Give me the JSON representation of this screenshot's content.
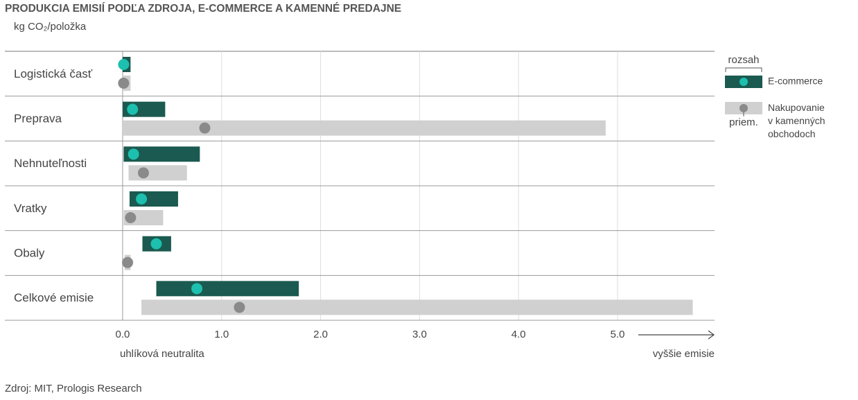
{
  "chart_data": {
    "type": "range_bar",
    "title": "PRODUKCIA EMISIÍ PODĽA ZDROJA, E-COMMERCE A KAMENNÉ PREDAJNE",
    "subtitle": "kg CO₂/položka",
    "categories": [
      "Logistická časť",
      "Preprava",
      "Nehnuteľnosti",
      "Vratky",
      "Obaly",
      "Celkové emisie"
    ],
    "series": [
      {
        "name": "E-commerce",
        "color": "#1b5a50",
        "marker_color": "#1dbfae",
        "low": [
          0,
          0,
          0.01,
          0.07,
          0.2,
          0.34
        ],
        "high": [
          0.08,
          0.43,
          0.78,
          0.56,
          0.49,
          1.78
        ],
        "avg": [
          0.01,
          0.1,
          0.11,
          0.19,
          0.34,
          0.75
        ]
      },
      {
        "name": "Nakupovanie v kamenných obchodoch",
        "color": "#d0d0d0",
        "marker_color": "#8a8a8a",
        "low": [
          0,
          0,
          0.06,
          0.01,
          0.02,
          0.19
        ],
        "high": [
          0.08,
          4.88,
          0.65,
          0.41,
          0.08,
          5.76
        ],
        "avg": [
          0.01,
          0.83,
          0.21,
          0.08,
          0.05,
          1.18
        ]
      }
    ],
    "xlim": [
      -1.19,
      5.98
    ],
    "xticks": [
      {
        "value": 0,
        "label": "0.0"
      },
      {
        "value": 1,
        "label": "1.0"
      },
      {
        "value": 2,
        "label": "2.0"
      },
      {
        "value": 3,
        "label": "3.0"
      },
      {
        "value": 4,
        "label": "4.0"
      },
      {
        "value": 5,
        "label": "5.0"
      }
    ],
    "grid": true,
    "legend_range_label": "rozsah",
    "legend_avg_label": "priem.",
    "x_left_annotation": "uhlíková neutralita",
    "x_right_annotation": "vyššie emisie",
    "source": "Zdroj: MIT, Prologis Research"
  }
}
